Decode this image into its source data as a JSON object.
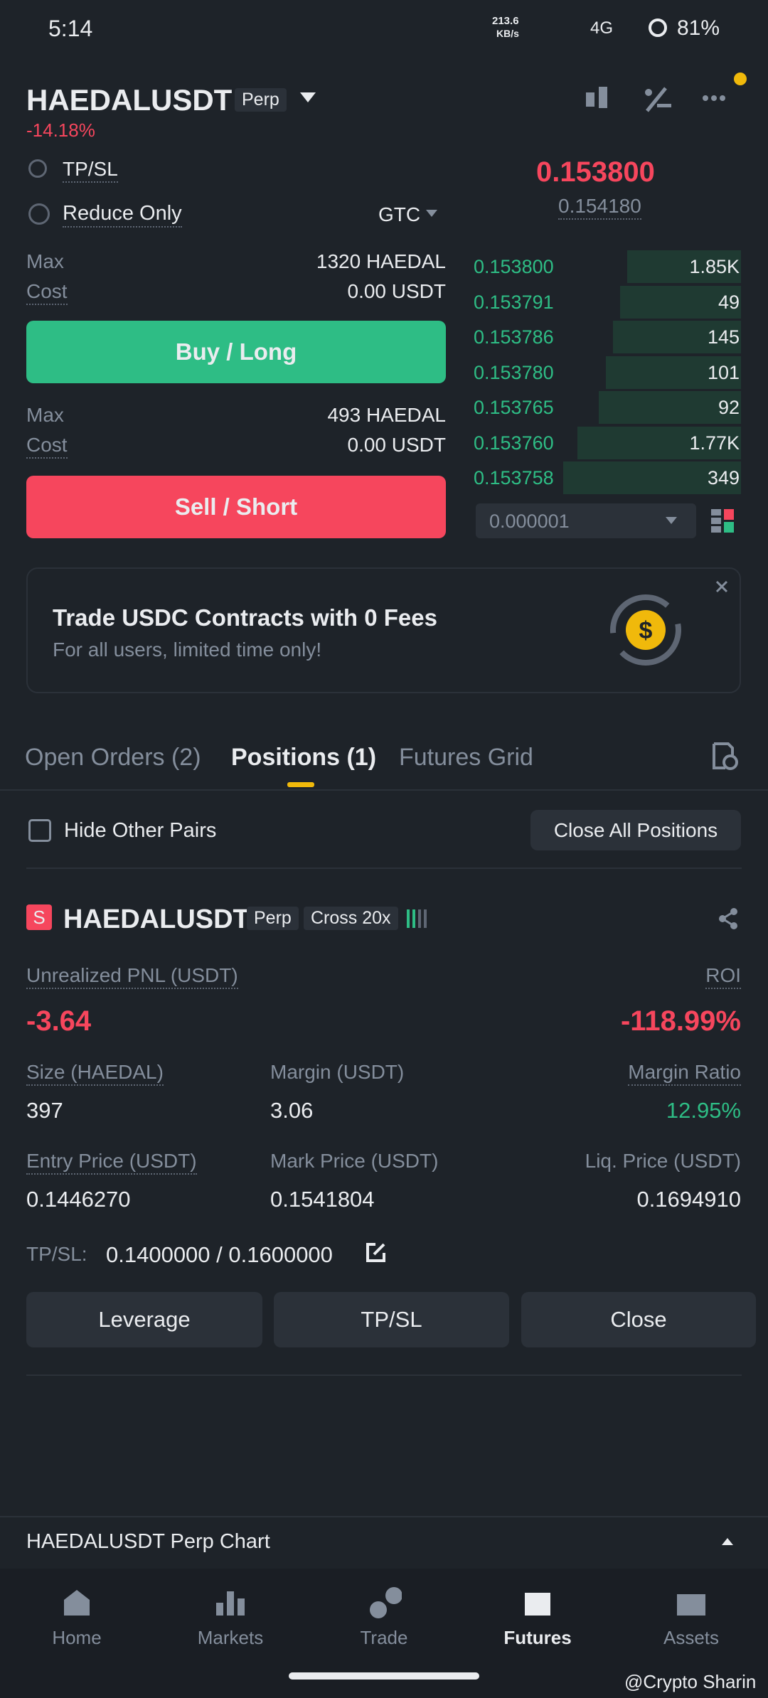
{
  "status": {
    "time": "5:14",
    "speed": "213.6",
    "speed_unit": "KB/s",
    "network": "4G",
    "battery": "81%"
  },
  "header": {
    "symbol": "HAEDALUSDT",
    "badge": "Perp",
    "change": "-14.18%"
  },
  "order_form": {
    "tpsl": "TP/SL",
    "reduce_only": "Reduce Only",
    "tif": "GTC",
    "buy": {
      "max_label": "Max",
      "max_value": "1320 HAEDAL",
      "cost_label": "Cost",
      "cost_value": "0.00 USDT",
      "button": "Buy / Long"
    },
    "sell": {
      "max_label": "Max",
      "max_value": "493 HAEDAL",
      "cost_label": "Cost",
      "cost_value": "0.00 USDT",
      "button": "Sell / Short"
    }
  },
  "orderbook": {
    "last_price": "0.153800",
    "mark_price": "0.154180",
    "rows": [
      [
        "0.153800",
        "1.85K"
      ],
      [
        "0.153791",
        "49"
      ],
      [
        "0.153786",
        "145"
      ],
      [
        "0.153780",
        "101"
      ],
      [
        "0.153765",
        "92"
      ],
      [
        "0.153760",
        "1.77K"
      ],
      [
        "0.153758",
        "349"
      ]
    ],
    "depth": "0.000001"
  },
  "banner": {
    "title": "Trade USDC Contracts with 0 Fees",
    "subtitle": "For all users, limited time only!"
  },
  "tabs": [
    "Open Orders (2)",
    "Positions (1)",
    "Futures Grid"
  ],
  "filters": {
    "hide_other_pairs": "Hide Other Pairs",
    "close_all": "Close All Positions"
  },
  "position": {
    "side": "S",
    "symbol": "HAEDALUSDT",
    "badges": [
      "Perp",
      "Cross 20x"
    ],
    "pnl_label": "Unrealized PNL (USDT)",
    "pnl": "-3.64",
    "roi_label": "ROI",
    "roi": "-118.99%",
    "size_label": "Size (HAEDAL)",
    "size": "397",
    "margin_label": "Margin (USDT)",
    "margin": "3.06",
    "margin_ratio_label": "Margin Ratio",
    "margin_ratio": "12.95%",
    "entry_label": "Entry Price (USDT)",
    "entry": "0.1446270",
    "mark_label": "Mark Price (USDT)",
    "mark": "0.1541804",
    "liq_label": "Liq. Price (USDT)",
    "liq": "0.1694910",
    "tpsl_label": "TP/SL:",
    "tpsl": "0.1400000 / 0.1600000",
    "buttons": [
      "Leverage",
      "TP/SL",
      "Close"
    ]
  },
  "chart_bar": "HAEDALUSDT Perp Chart",
  "nav": [
    "Home",
    "Markets",
    "Trade",
    "Futures",
    "Assets"
  ],
  "watermark": "@Crypto Sharin"
}
